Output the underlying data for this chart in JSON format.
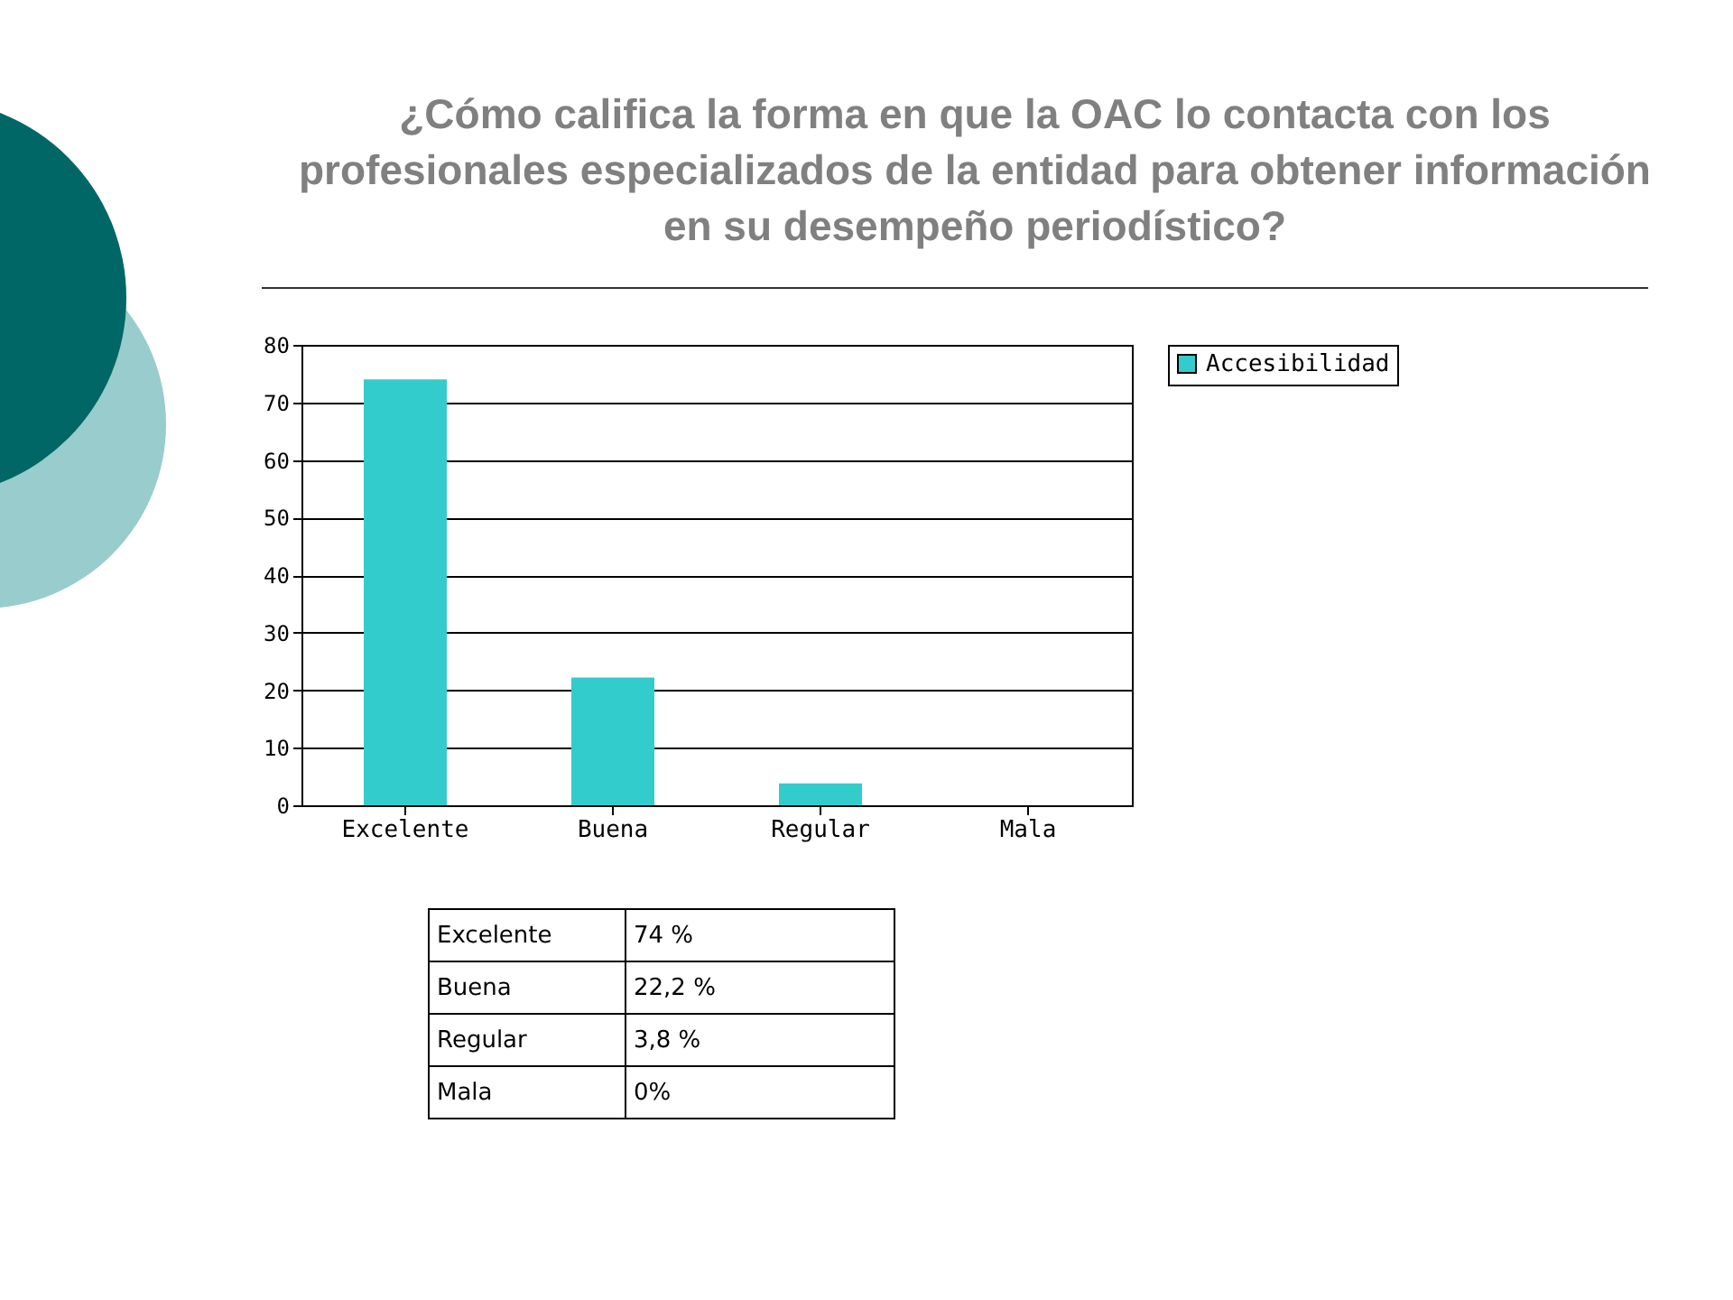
{
  "chart_data": {
    "type": "bar",
    "title": "¿Cómo califica la forma en que la OAC lo contacta con los profesionales especializados de la entidad para obtener información en su desempeño periodístico?",
    "categories": [
      "Excelente",
      "Buena",
      "Regular",
      "Mala"
    ],
    "series": [
      {
        "name": "Accesibilidad",
        "color": "#33cccc",
        "values": [
          74,
          22.2,
          3.8,
          0
        ]
      }
    ],
    "annotations": [
      "74 %",
      "22,2 %",
      "3,8 %",
      "0%"
    ],
    "ylim": [
      0,
      80
    ],
    "yticks": [
      0,
      10,
      20,
      30,
      40,
      50,
      60,
      70,
      80
    ],
    "grid": "y",
    "legend": "right"
  }
}
